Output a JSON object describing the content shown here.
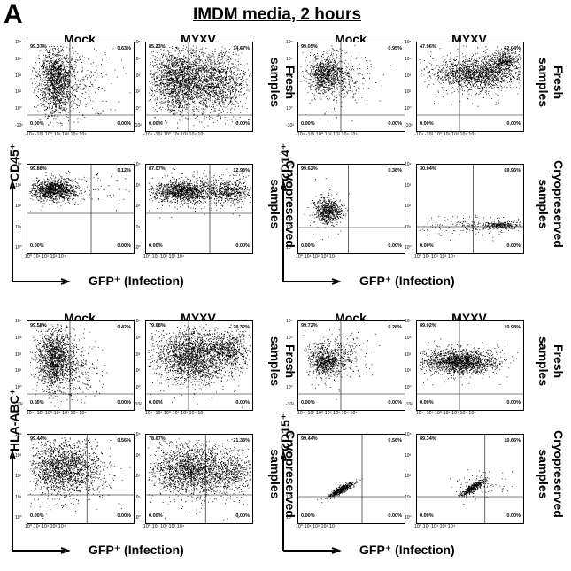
{
  "panel_letter": "A",
  "title": "IMDM media, 2 hours",
  "columns": [
    "Mock",
    "MYXV"
  ],
  "row_labels": {
    "fresh": [
      "Fresh",
      "samples"
    ],
    "cryo": [
      "Cryopreserved",
      "samples"
    ]
  },
  "x_axis_label": "GFP⁺ (Infection)",
  "tick_labels": {
    "fresh_x": "-10⁴ -10² 10⁰ 10²  10³  10⁴  10⁵",
    "fresh_y": [
      "10⁵",
      "10⁴",
      "10³",
      "10²",
      "10⁰",
      "-10²"
    ],
    "cryo_x": "10⁰  10¹  10²  10³  10⁴",
    "cryo_y": [
      "10⁴",
      "10³",
      "10²",
      "10¹",
      "10⁰"
    ]
  },
  "chart_data": [
    {
      "type": "scatter",
      "marker": "CD45⁺",
      "sample": "Fresh samples",
      "condition": "Mock",
      "quadrants": {
        "ul": "99.37%",
        "ur": "0.63%",
        "ll": "0.00%",
        "lr": "0.00%"
      }
    },
    {
      "type": "scatter",
      "marker": "CD45⁺",
      "sample": "Fresh samples",
      "condition": "MYXV",
      "quadrants": {
        "ul": "85.33%",
        "ur": "14.67%",
        "ll": "0.00%",
        "lr": "0.00%"
      }
    },
    {
      "type": "scatter",
      "marker": "CD45⁺",
      "sample": "Cryopreserved samples",
      "condition": "Mock",
      "quadrants": {
        "ul": "99.88%",
        "ur": "0.12%",
        "ll": "0.00%",
        "lr": "0.00%"
      }
    },
    {
      "type": "scatter",
      "marker": "CD45⁺",
      "sample": "Cryopreserved samples",
      "condition": "MYXV",
      "quadrants": {
        "ul": "87.07%",
        "ur": "12.93%",
        "ll": "0.00%",
        "lr": "0.00%"
      }
    },
    {
      "type": "scatter",
      "marker": "CD14⁺",
      "sample": "Fresh samples",
      "condition": "Mock",
      "quadrants": {
        "ul": "99.05%",
        "ur": "0.95%",
        "ll": "0.00%",
        "lr": "0.00%"
      }
    },
    {
      "type": "scatter",
      "marker": "CD14⁺",
      "sample": "Fresh samples",
      "condition": "MYXV",
      "quadrants": {
        "ul": "47.96%",
        "ur": "52.04%",
        "ll": "0.00%",
        "lr": "0.00%"
      }
    },
    {
      "type": "scatter",
      "marker": "CD14⁺",
      "sample": "Cryopreserved samples",
      "condition": "Mock",
      "quadrants": {
        "ul": "99.62%",
        "ur": "0.38%",
        "ll": "0.00%",
        "lr": "0.00%"
      }
    },
    {
      "type": "scatter",
      "marker": "CD14⁺",
      "sample": "Cryopreserved samples",
      "condition": "MYXV",
      "quadrants": {
        "ul": "30.04%",
        "ur": "69.96%",
        "ll": "0.00%",
        "lr": "0.00%"
      }
    },
    {
      "type": "scatter",
      "marker": "HLA-ABC⁺",
      "sample": "Fresh samples",
      "condition": "Mock",
      "quadrants": {
        "ul": "99.58%",
        "ur": "0.42%",
        "ll": "0.00%",
        "lr": "0.00%"
      }
    },
    {
      "type": "scatter",
      "marker": "HLA-ABC⁺",
      "sample": "Fresh samples",
      "condition": "MYXV",
      "quadrants": {
        "ul": "79.68%",
        "ur": "20.32%",
        "ll": "0.00%",
        "lr": "0.00%"
      }
    },
    {
      "type": "scatter",
      "marker": "HLA-ABC⁺",
      "sample": "Cryopreserved samples",
      "condition": "Mock",
      "quadrants": {
        "ul": "99.44%",
        "ur": "0.56%",
        "ll": "0.00%",
        "lr": "0.00%"
      }
    },
    {
      "type": "scatter",
      "marker": "HLA-ABC⁺",
      "sample": "Cryopreserved samples",
      "condition": "MYXV",
      "quadrants": {
        "ul": "78.67%",
        "ur": "21.33%",
        "ll": "0.00%",
        "lr": "0.00%"
      }
    },
    {
      "type": "scatter",
      "marker": "CD15⁺",
      "sample": "Fresh samples",
      "condition": "Mock",
      "quadrants": {
        "ul": "99.72%",
        "ur": "0.28%",
        "ll": "0.00%",
        "lr": "0.00%"
      }
    },
    {
      "type": "scatter",
      "marker": "CD15⁺",
      "sample": "Fresh samples",
      "condition": "MYXV",
      "quadrants": {
        "ul": "89.02%",
        "ur": "10.98%",
        "ll": "0.00%",
        "lr": "0.00%"
      }
    },
    {
      "type": "scatter",
      "marker": "CD15⁺",
      "sample": "Cryopreserved samples",
      "condition": "Mock",
      "quadrants": {
        "ul": "99.44%",
        "ur": "0.56%",
        "ll": "0.00%",
        "lr": "0.00%"
      }
    },
    {
      "type": "scatter",
      "marker": "CD15⁺",
      "sample": "Cryopreserved samples",
      "condition": "MYXV",
      "quadrants": {
        "ul": "89.34%",
        "ur": "10.66%",
        "ll": "0.00%",
        "lr": "0.00%"
      }
    }
  ]
}
